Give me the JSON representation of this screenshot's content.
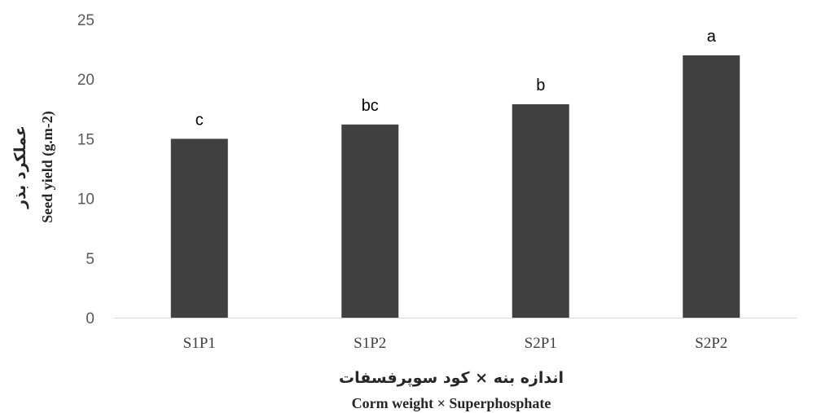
{
  "chart_data": {
    "type": "bar",
    "categories": [
      "S1P1",
      "S1P2",
      "S2P1",
      "S2P2"
    ],
    "values": [
      15,
      16.2,
      17.9,
      22
    ],
    "data_labels": [
      "c",
      "bc",
      "b",
      "a"
    ],
    "title": "",
    "xlabel_fa": "اندازه بنه × کود سوپرفسفات",
    "xlabel_en": "Corm weight × Superphosphate",
    "ylabel_fa": "عملکرد بذر",
    "ylabel_en": "Seed yield (g.m-2)",
    "ylim": [
      0,
      25
    ],
    "yticks": [
      "0",
      "5",
      "10",
      "15",
      "20",
      "25"
    ],
    "grid": false,
    "legend": "none",
    "bar_color": "#404040",
    "axis_color": "#d9d9d9"
  }
}
